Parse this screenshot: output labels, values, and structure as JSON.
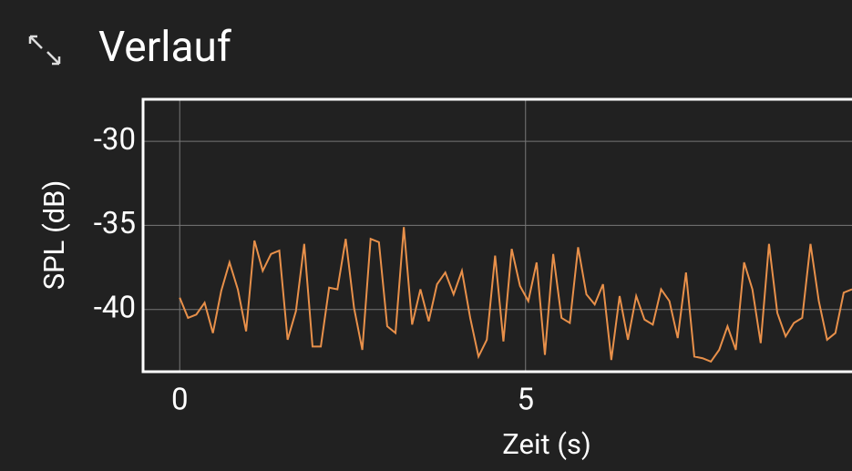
{
  "chart_data": {
    "type": "line",
    "title": "Verlauf",
    "x_label": "Zeit (s)",
    "y_label": "SPL (dB)",
    "x": [
      0,
      0.12,
      0.24,
      0.36,
      0.48,
      0.6,
      0.72,
      0.84,
      0.96,
      1.08,
      1.2,
      1.32,
      1.44,
      1.56,
      1.68,
      1.8,
      1.92,
      2.04,
      2.16,
      2.28,
      2.4,
      2.52,
      2.64,
      2.76,
      2.88,
      3.0,
      3.12,
      3.24,
      3.36,
      3.48,
      3.6,
      3.72,
      3.84,
      3.96,
      4.08,
      4.2,
      4.32,
      4.44,
      4.56,
      4.68,
      4.8,
      4.92,
      5.04,
      5.16,
      5.28,
      5.4,
      5.52,
      5.64,
      5.76,
      5.88,
      6.0,
      6.12,
      6.24,
      6.36,
      6.48,
      6.6,
      6.72,
      6.84,
      6.96,
      7.08,
      7.2,
      7.32,
      7.44,
      7.56,
      7.68,
      7.8,
      7.92,
      8.04,
      8.16,
      8.28,
      8.4,
      8.52,
      8.64,
      8.76,
      8.88,
      9.0,
      9.12,
      9.24,
      9.36,
      9.48,
      9.6,
      9.72
    ],
    "series": [
      {
        "name": "SPL",
        "color": "#e8904a",
        "values": [
          -39.3,
          -40.5,
          -40.3,
          -39.6,
          -41.4,
          -38.9,
          -37.2,
          -38.8,
          -41.3,
          -35.9,
          -37.7,
          -36.7,
          -36.5,
          -41.8,
          -40.1,
          -36.1,
          -42.2,
          -42.2,
          -38.7,
          -38.8,
          -35.8,
          -39.9,
          -42.4,
          -35.8,
          -36.0,
          -41.0,
          -41.4,
          -35.1,
          -40.9,
          -38.8,
          -40.7,
          -38.5,
          -37.8,
          -39.1,
          -37.7,
          -40.5,
          -42.8,
          -41.8,
          -36.8,
          -41.9,
          -36.4,
          -38.6,
          -39.5,
          -37.2,
          -42.7,
          -36.7,
          -40.5,
          -40.8,
          -36.3,
          -39.1,
          -39.7,
          -38.5,
          -43.0,
          -39.2,
          -41.8,
          -39.2,
          -40.6,
          -40.9,
          -38.8,
          -39.5,
          -41.7,
          -37.8,
          -42.8,
          -42.9,
          -43.1,
          -42.4,
          -41.0,
          -42.4,
          -37.2,
          -38.8,
          -42.0,
          -36.1,
          -40.2,
          -41.6,
          -40.8,
          -40.5,
          -36.1,
          -39.5,
          -41.8,
          -41.4,
          -39.0,
          -38.8
        ]
      }
    ],
    "xlim": [
      -0.53,
      9.72
    ],
    "ylim": [
      -43.7,
      -27.5
    ],
    "xticks": [
      0,
      5
    ],
    "yticks": [
      -30,
      -35,
      -40
    ],
    "grid": true
  }
}
